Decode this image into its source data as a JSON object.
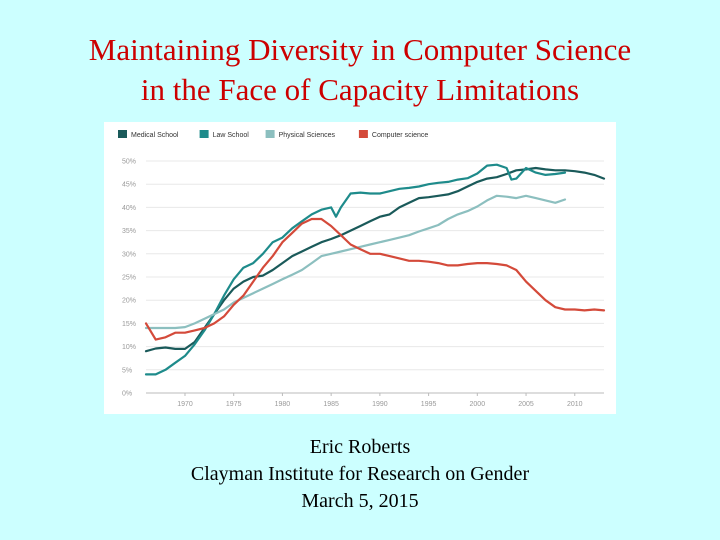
{
  "title": {
    "line1": "Maintaining Diversity in Computer Science",
    "line2": "in the Face of Capacity Limitations"
  },
  "footer": {
    "author": "Eric Roberts",
    "institute": "Clayman Institute for Research on Gender",
    "date": "March 5, 2015"
  },
  "colors": {
    "background": "#ccffff",
    "title": "#cc0000"
  },
  "chart_data": {
    "type": "line",
    "title": "",
    "xlabel": "",
    "ylabel": "",
    "xlim": [
      1966,
      2013
    ],
    "ylim": [
      0,
      50
    ],
    "x_ticks": [
      1970,
      1975,
      1980,
      1985,
      1990,
      1995,
      2000,
      2005,
      2010
    ],
    "x_tick_labels": [
      "1970",
      "1975",
      "1980",
      "1985",
      "1990",
      "1995",
      "2000",
      "2005",
      "2010"
    ],
    "y_ticks": [
      0,
      5,
      10,
      15,
      20,
      25,
      30,
      35,
      40,
      45,
      50
    ],
    "y_tick_labels": [
      "0%",
      "5%",
      "10%",
      "15%",
      "20%",
      "25%",
      "30%",
      "35%",
      "40%",
      "45%",
      "50%"
    ],
    "grid": true,
    "legend_position": "top-left",
    "series": [
      {
        "name": "Medical School",
        "color": "#1a5a5a",
        "x": [
          1966,
          1967,
          1968,
          1969,
          1970,
          1971,
          1972,
          1973,
          1974,
          1975,
          1976,
          1977,
          1978,
          1979,
          1980,
          1981,
          1982,
          1983,
          1984,
          1985,
          1986,
          1987,
          1988,
          1989,
          1990,
          1991,
          1992,
          1993,
          1994,
          1995,
          1996,
          1997,
          1998,
          1999,
          2000,
          2001,
          2002,
          2003,
          2004,
          2005,
          2006,
          2007,
          2008,
          2009,
          2010,
          2011,
          2012,
          2013
        ],
        "values": [
          9,
          9.6,
          9.8,
          9.5,
          9.5,
          11,
          14,
          17,
          20,
          22.5,
          24,
          25,
          25.3,
          26.5,
          28,
          29.5,
          30.5,
          31.5,
          32.5,
          33.2,
          34,
          35,
          36,
          37,
          38,
          38.5,
          40,
          41,
          42,
          42.2,
          42.5,
          42.8,
          43.5,
          44.5,
          45.5,
          46.2,
          46.5,
          47.2,
          48,
          48.2,
          48.5,
          48.2,
          48,
          48,
          47.8,
          47.5,
          47,
          46.2
        ]
      },
      {
        "name": "Law School",
        "color": "#1e8b8b",
        "x": [
          1966,
          1967,
          1968,
          1969,
          1970,
          1971,
          1972,
          1973,
          1974,
          1975,
          1976,
          1977,
          1978,
          1979,
          1980,
          1981,
          1982,
          1983,
          1984,
          1985,
          1985.5,
          1986,
          1987,
          1988,
          1989,
          1990,
          1991,
          1992,
          1993,
          1994,
          1995,
          1996,
          1997,
          1998,
          1999,
          2000,
          2001,
          2002,
          2003,
          2003.5,
          2004,
          2005,
          2006,
          2007,
          2008,
          2009
        ],
        "values": [
          4,
          4,
          5,
          6.5,
          8,
          10.5,
          13.5,
          17,
          21,
          24.5,
          27,
          28,
          30,
          32.5,
          33.5,
          35.5,
          37,
          38.5,
          39.5,
          40,
          38,
          40,
          43,
          43.2,
          43,
          43,
          43.5,
          44,
          44.2,
          44.5,
          45,
          45.3,
          45.5,
          46,
          46.3,
          47.3,
          49,
          49.2,
          48.5,
          46,
          46.2,
          48.5,
          47.5,
          47,
          47.2,
          47.5
        ]
      },
      {
        "name": "Physical Sciences",
        "color": "#8cbfbf",
        "x": [
          1966,
          1967,
          1968,
          1969,
          1970,
          1971,
          1972,
          1973,
          1974,
          1975,
          1976,
          1977,
          1978,
          1979,
          1980,
          1981,
          1982,
          1983,
          1984,
          1985,
          1986,
          1987,
          1988,
          1989,
          1990,
          1991,
          1992,
          1993,
          1994,
          1995,
          1996,
          1997,
          1998,
          1999,
          2000,
          2001,
          2002,
          2003,
          2004,
          2005,
          2006,
          2007,
          2008,
          2009
        ],
        "values": [
          14,
          14,
          14,
          14,
          14.2,
          15,
          16,
          17,
          18,
          19.5,
          20.5,
          21.5,
          22.5,
          23.5,
          24.5,
          25.5,
          26.5,
          28,
          29.5,
          30,
          30.5,
          31,
          31.5,
          32,
          32.5,
          33,
          33.5,
          34,
          34.8,
          35.5,
          36.2,
          37.5,
          38.5,
          39.2,
          40.2,
          41.5,
          42.5,
          42.3,
          42,
          42.5,
          42,
          41.5,
          41,
          41.7
        ]
      },
      {
        "name": "Computer science",
        "color": "#d44a3a",
        "x": [
          1966,
          1967,
          1968,
          1969,
          1970,
          1971,
          1972,
          1973,
          1974,
          1975,
          1976,
          1977,
          1978,
          1979,
          1980,
          1981,
          1982,
          1983,
          1984,
          1985,
          1986,
          1987,
          1988,
          1989,
          1990,
          1991,
          1992,
          1993,
          1994,
          1995,
          1996,
          1997,
          1998,
          1999,
          2000,
          2001,
          2002,
          2003,
          2004,
          2005,
          2006,
          2007,
          2008,
          2009,
          2010,
          2011,
          2012,
          2013
        ],
        "values": [
          15,
          11.5,
          12,
          13,
          13,
          13.5,
          14,
          15,
          16.5,
          19,
          21,
          24,
          27,
          29.5,
          32.5,
          34.5,
          36.5,
          37.5,
          37.5,
          36,
          34,
          32,
          31,
          30,
          30,
          29.5,
          29,
          28.5,
          28.5,
          28.3,
          28,
          27.5,
          27.5,
          27.8,
          28,
          28,
          27.8,
          27.5,
          26.5,
          24,
          22,
          20,
          18.5,
          18,
          18,
          17.8,
          18,
          17.8
        ]
      }
    ]
  }
}
